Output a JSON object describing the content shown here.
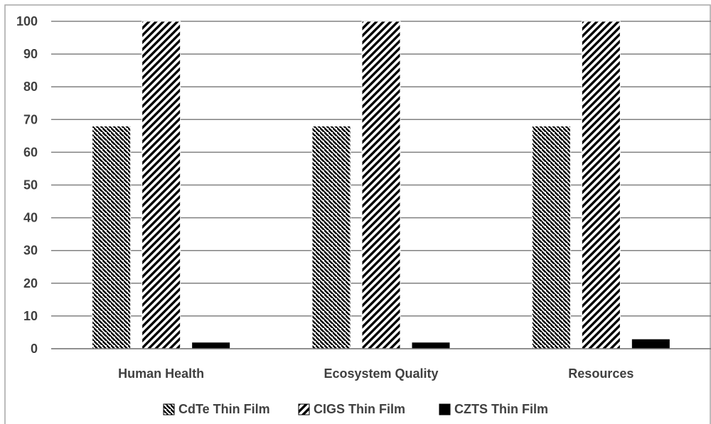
{
  "chart_data": {
    "type": "bar",
    "categories": [
      "Human Health",
      "Ecosystem Quality",
      "Resources"
    ],
    "series": [
      {
        "name": "CdTe Thin Film",
        "values": [
          68,
          68,
          68
        ],
        "pattern": "backslash-hatch",
        "color": "#000000"
      },
      {
        "name": "CIGS Thin Film",
        "values": [
          100,
          100,
          100
        ],
        "pattern": "slash-hatch",
        "color": "#000000"
      },
      {
        "name": "CZTS Thin Film",
        "values": [
          2,
          2,
          3
        ],
        "pattern": "solid",
        "color": "#000000"
      }
    ],
    "yticks": [
      0,
      10,
      20,
      30,
      40,
      50,
      60,
      70,
      80,
      90,
      100
    ],
    "ylim": [
      0,
      100
    ],
    "grid": true,
    "legend_position": "bottom",
    "gridline_color": "#808080",
    "text_color": "#404040"
  }
}
